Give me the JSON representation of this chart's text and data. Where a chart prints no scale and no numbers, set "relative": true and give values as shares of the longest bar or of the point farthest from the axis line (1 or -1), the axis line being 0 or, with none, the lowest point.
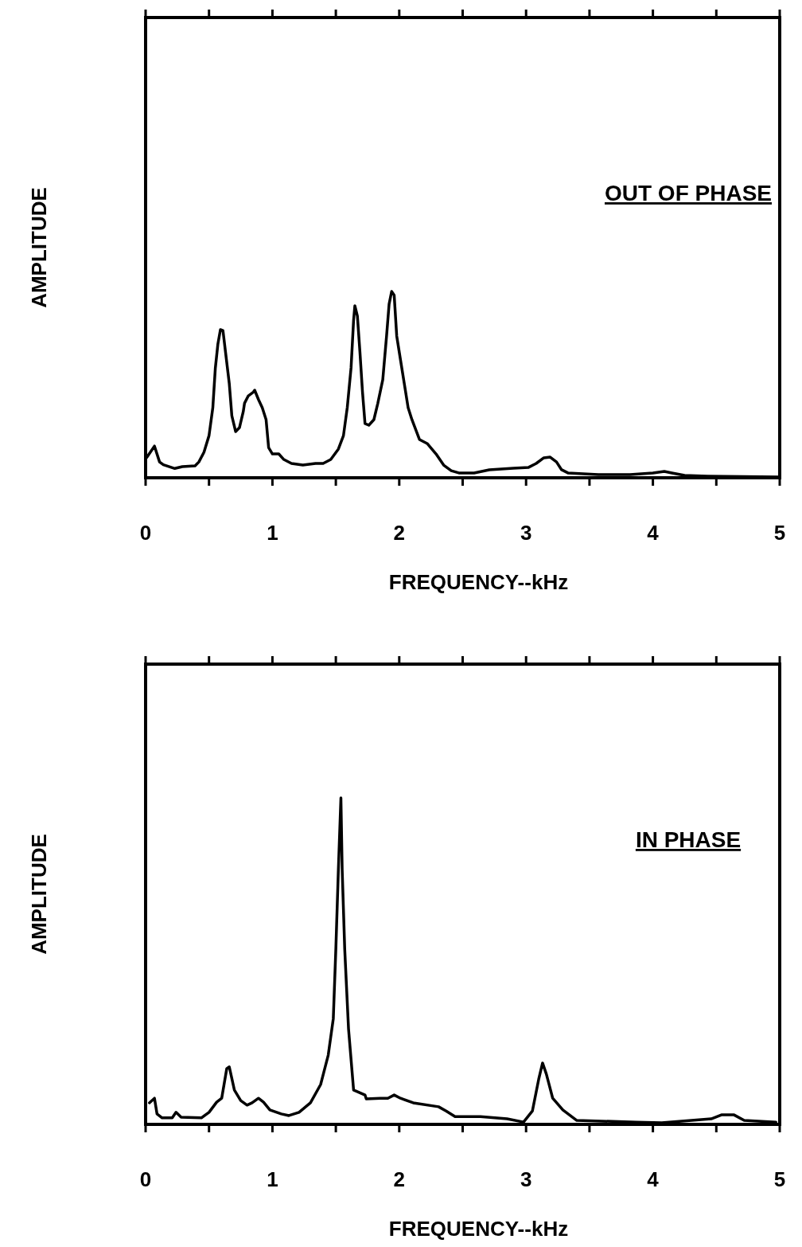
{
  "chart_data": [
    {
      "type": "line",
      "relative": true,
      "xlabel": "FREQUENCY--kHz",
      "ylabel": "AMPLITUDE",
      "annotations": [
        "OUT OF PHASE"
      ],
      "xlim": [
        0,
        5
      ],
      "xticks": [
        0,
        {
          "value": 0.5,
          "label": null
        },
        1,
        {
          "value": 1.5,
          "label": null
        },
        2,
        {
          "value": 2.5,
          "label": null
        },
        3,
        {
          "value": 3.5,
          "label": null
        },
        4,
        {
          "value": 4.5,
          "label": null
        },
        5
      ],
      "x": [
        0.01,
        0.07,
        0.11,
        0.14,
        0.23,
        0.29,
        0.39,
        0.42,
        0.46,
        0.5,
        0.53,
        0.55,
        0.57,
        0.59,
        0.61,
        0.63,
        0.66,
        0.68,
        0.71,
        0.74,
        0.77,
        0.78,
        0.81,
        0.85,
        0.86,
        0.89,
        0.92,
        0.95,
        0.97,
        1.0,
        1.05,
        1.09,
        1.15,
        1.24,
        1.34,
        1.4,
        1.46,
        1.52,
        1.56,
        1.59,
        1.62,
        1.64,
        1.65,
        1.67,
        1.69,
        1.71,
        1.73,
        1.76,
        1.8,
        1.83,
        1.87,
        1.9,
        1.92,
        1.94,
        1.96,
        1.98,
        2.01,
        2.04,
        2.07,
        2.1,
        2.16,
        2.22,
        2.29,
        2.35,
        2.41,
        2.47,
        2.59,
        2.71,
        2.9,
        3.02,
        3.08,
        3.14,
        3.19,
        3.24,
        3.28,
        3.33,
        3.57,
        3.82,
        4.0,
        4.09,
        4.15,
        4.25,
        4.43,
        4.99
      ],
      "series": [
        {
          "color": "#000000",
          "values": [
            0.11,
            0.17,
            0.085,
            0.07,
            0.05,
            0.06,
            0.064,
            0.085,
            0.137,
            0.226,
            0.376,
            0.59,
            0.718,
            0.795,
            0.79,
            0.675,
            0.504,
            0.333,
            0.248,
            0.269,
            0.355,
            0.4,
            0.44,
            0.46,
            0.47,
            0.42,
            0.376,
            0.312,
            0.162,
            0.128,
            0.128,
            0.098,
            0.077,
            0.068,
            0.077,
            0.077,
            0.098,
            0.154,
            0.226,
            0.376,
            0.59,
            0.846,
            0.923,
            0.868,
            0.675,
            0.462,
            0.291,
            0.282,
            0.312,
            0.397,
            0.526,
            0.761,
            0.932,
            1.0,
            0.98,
            0.761,
            0.632,
            0.504,
            0.376,
            0.312,
            0.205,
            0.184,
            0.128,
            0.068,
            0.038,
            0.026,
            0.026,
            0.043,
            0.051,
            0.056,
            0.077,
            0.107,
            0.111,
            0.085,
            0.043,
            0.026,
            0.017,
            0.017,
            0.026,
            0.034,
            0.026,
            0.013,
            0.009,
            0.004
          ]
        }
      ]
    },
    {
      "type": "line",
      "relative": true,
      "xlabel": "FREQUENCY--kHz",
      "ylabel": "AMPLITUDE",
      "annotations": [
        "IN PHASE"
      ],
      "xlim": [
        0,
        5
      ],
      "xticks": [
        0,
        {
          "value": 0.5,
          "label": null
        },
        1,
        {
          "value": 1.5,
          "label": null
        },
        2,
        {
          "value": 2.5,
          "label": null
        },
        3,
        {
          "value": 3.5,
          "label": null
        },
        4,
        {
          "value": 4.5,
          "label": null
        },
        5
      ],
      "x": [
        0.03,
        0.07,
        0.09,
        0.13,
        0.21,
        0.24,
        0.28,
        0.44,
        0.5,
        0.56,
        0.6,
        0.64,
        0.66,
        0.7,
        0.75,
        0.8,
        0.84,
        0.89,
        0.93,
        0.98,
        1.07,
        1.13,
        1.21,
        1.3,
        1.38,
        1.44,
        1.48,
        1.5,
        1.52,
        1.54,
        1.55,
        1.57,
        1.6,
        1.64,
        1.73,
        1.74,
        1.85,
        1.91,
        1.96,
        2.01,
        2.11,
        2.31,
        2.37,
        2.44,
        2.54,
        2.64,
        2.85,
        2.98,
        3.05,
        3.1,
        3.13,
        3.16,
        3.21,
        3.29,
        3.4,
        3.87,
        4.07,
        4.46,
        4.54,
        4.64,
        4.72,
        4.97
      ],
      "series": [
        {
          "color": "#000000",
          "values": [
            0.066,
            0.08,
            0.032,
            0.02,
            0.02,
            0.037,
            0.022,
            0.02,
            0.037,
            0.068,
            0.08,
            0.171,
            0.176,
            0.105,
            0.073,
            0.059,
            0.066,
            0.08,
            0.068,
            0.044,
            0.032,
            0.027,
            0.037,
            0.066,
            0.122,
            0.212,
            0.324,
            0.537,
            0.78,
            1.0,
            0.78,
            0.537,
            0.293,
            0.105,
            0.09,
            0.078,
            0.08,
            0.08,
            0.09,
            0.08,
            0.066,
            0.054,
            0.041,
            0.024,
            0.024,
            0.024,
            0.017,
            0.007,
            0.041,
            0.139,
            0.188,
            0.154,
            0.08,
            0.044,
            0.012,
            0.007,
            0.005,
            0.017,
            0.029,
            0.029,
            0.012,
            0.007
          ]
        }
      ]
    }
  ]
}
